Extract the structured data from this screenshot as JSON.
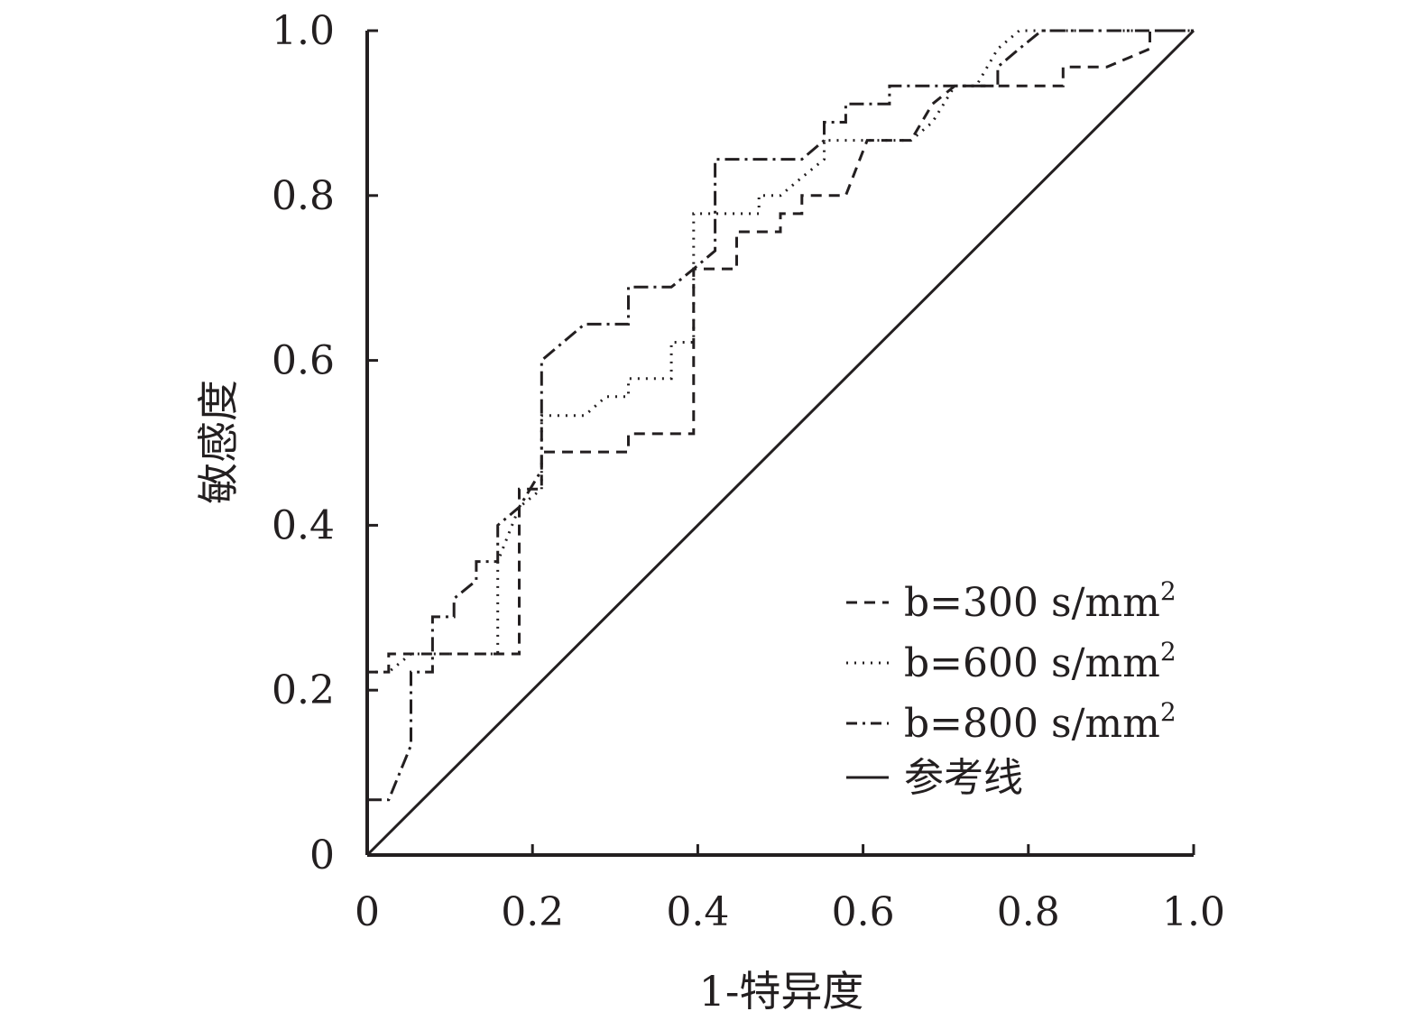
{
  "chart_data": {
    "type": "line",
    "title": "",
    "xlabel": "1-特异度",
    "ylabel": "敏感度",
    "xlim": [
      0,
      1
    ],
    "ylim": [
      0,
      1
    ],
    "x_ticks": [
      "0",
      "0.2",
      "0.4",
      "0.6",
      "0.8",
      "1.0"
    ],
    "y_ticks": [
      "0",
      "0.2",
      "0.4",
      "0.6",
      "0.8",
      "1.0"
    ],
    "grid": false,
    "legend_position": "bottom-right",
    "series": [
      {
        "name": "b=300 s/mm",
        "name_sup": "2",
        "dash": "12,8",
        "points": [
          [
            0,
            0.222
          ],
          [
            0.026,
            0.222
          ],
          [
            0.026,
            0.244
          ],
          [
            0.053,
            0.244
          ],
          [
            0.079,
            0.244
          ],
          [
            0.105,
            0.244
          ],
          [
            0.132,
            0.244
          ],
          [
            0.158,
            0.244
          ],
          [
            0.184,
            0.244
          ],
          [
            0.184,
            0.444
          ],
          [
            0.211,
            0.444
          ],
          [
            0.211,
            0.489
          ],
          [
            0.237,
            0.489
          ],
          [
            0.263,
            0.489
          ],
          [
            0.289,
            0.489
          ],
          [
            0.316,
            0.489
          ],
          [
            0.316,
            0.511
          ],
          [
            0.342,
            0.511
          ],
          [
            0.368,
            0.511
          ],
          [
            0.395,
            0.511
          ],
          [
            0.395,
            0.711
          ],
          [
            0.421,
            0.711
          ],
          [
            0.447,
            0.711
          ],
          [
            0.447,
            0.756
          ],
          [
            0.474,
            0.756
          ],
          [
            0.5,
            0.756
          ],
          [
            0.5,
            0.778
          ],
          [
            0.526,
            0.778
          ],
          [
            0.526,
            0.8
          ],
          [
            0.553,
            0.8
          ],
          [
            0.579,
            0.8
          ],
          [
            0.605,
            0.867
          ],
          [
            0.632,
            0.867
          ],
          [
            0.658,
            0.867
          ],
          [
            0.684,
            0.911
          ],
          [
            0.711,
            0.933
          ],
          [
            0.737,
            0.933
          ],
          [
            0.763,
            0.933
          ],
          [
            0.789,
            0.933
          ],
          [
            0.816,
            0.933
          ],
          [
            0.842,
            0.933
          ],
          [
            0.842,
            0.956
          ],
          [
            0.868,
            0.956
          ],
          [
            0.895,
            0.956
          ],
          [
            0.921,
            0.967
          ],
          [
            0.947,
            0.978
          ],
          [
            0.947,
            1.0
          ],
          [
            1.0,
            1.0
          ]
        ]
      },
      {
        "name": "b=600 s/mm",
        "name_sup": "2",
        "dash": "2,7",
        "points": [
          [
            0,
            0.222
          ],
          [
            0.026,
            0.222
          ],
          [
            0.053,
            0.244
          ],
          [
            0.079,
            0.244
          ],
          [
            0.105,
            0.244
          ],
          [
            0.132,
            0.244
          ],
          [
            0.158,
            0.244
          ],
          [
            0.158,
            0.356
          ],
          [
            0.184,
            0.422
          ],
          [
            0.211,
            0.444
          ],
          [
            0.211,
            0.533
          ],
          [
            0.237,
            0.533
          ],
          [
            0.263,
            0.533
          ],
          [
            0.289,
            0.556
          ],
          [
            0.316,
            0.556
          ],
          [
            0.316,
            0.578
          ],
          [
            0.342,
            0.578
          ],
          [
            0.368,
            0.578
          ],
          [
            0.368,
            0.622
          ],
          [
            0.395,
            0.622
          ],
          [
            0.395,
            0.778
          ],
          [
            0.421,
            0.778
          ],
          [
            0.447,
            0.778
          ],
          [
            0.474,
            0.778
          ],
          [
            0.474,
            0.8
          ],
          [
            0.5,
            0.8
          ],
          [
            0.526,
            0.822
          ],
          [
            0.553,
            0.844
          ],
          [
            0.553,
            0.867
          ],
          [
            0.579,
            0.867
          ],
          [
            0.605,
            0.867
          ],
          [
            0.632,
            0.867
          ],
          [
            0.658,
            0.867
          ],
          [
            0.684,
            0.889
          ],
          [
            0.711,
            0.933
          ],
          [
            0.737,
            0.933
          ],
          [
            0.763,
            0.978
          ],
          [
            0.789,
            1.0
          ],
          [
            0.816,
            1.0
          ],
          [
            1.0,
            1.0
          ]
        ]
      },
      {
        "name": "b=800 s/mm",
        "name_sup": "2",
        "dash": "16,6,3,6",
        "points": [
          [
            0,
            0.067
          ],
          [
            0.026,
            0.067
          ],
          [
            0.053,
            0.133
          ],
          [
            0.053,
            0.222
          ],
          [
            0.079,
            0.222
          ],
          [
            0.079,
            0.289
          ],
          [
            0.105,
            0.289
          ],
          [
            0.105,
            0.311
          ],
          [
            0.132,
            0.333
          ],
          [
            0.132,
            0.356
          ],
          [
            0.158,
            0.356
          ],
          [
            0.158,
            0.4
          ],
          [
            0.184,
            0.422
          ],
          [
            0.211,
            0.467
          ],
          [
            0.211,
            0.6
          ],
          [
            0.237,
            0.622
          ],
          [
            0.263,
            0.644
          ],
          [
            0.289,
            0.644
          ],
          [
            0.316,
            0.644
          ],
          [
            0.316,
            0.689
          ],
          [
            0.342,
            0.689
          ],
          [
            0.368,
            0.689
          ],
          [
            0.395,
            0.711
          ],
          [
            0.421,
            0.733
          ],
          [
            0.421,
            0.844
          ],
          [
            0.447,
            0.844
          ],
          [
            0.474,
            0.844
          ],
          [
            0.5,
            0.844
          ],
          [
            0.526,
            0.844
          ],
          [
            0.553,
            0.867
          ],
          [
            0.553,
            0.889
          ],
          [
            0.579,
            0.889
          ],
          [
            0.579,
            0.911
          ],
          [
            0.605,
            0.911
          ],
          [
            0.632,
            0.911
          ],
          [
            0.632,
            0.933
          ],
          [
            0.658,
            0.933
          ],
          [
            0.684,
            0.933
          ],
          [
            0.711,
            0.933
          ],
          [
            0.737,
            0.933
          ],
          [
            0.763,
            0.933
          ],
          [
            0.763,
            0.956
          ],
          [
            0.789,
            0.978
          ],
          [
            0.816,
            1.0
          ],
          [
            1.0,
            1.0
          ]
        ]
      },
      {
        "name": "参考线",
        "dash": "",
        "points": [
          [
            0,
            0
          ],
          [
            1,
            1
          ]
        ]
      }
    ]
  }
}
